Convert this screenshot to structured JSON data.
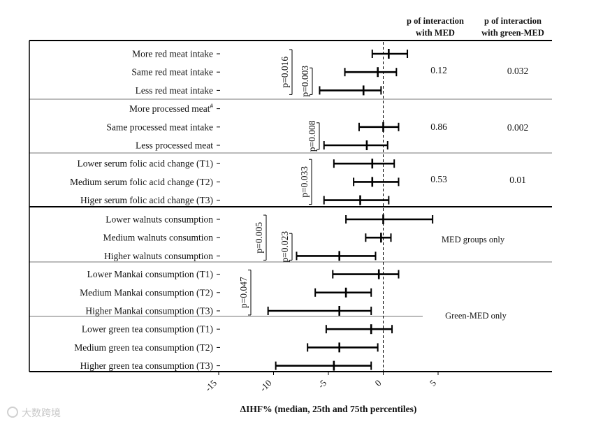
{
  "chart_data": {
    "type": "forest",
    "xlabel": "ΔIHF% (median, 25th and 75th percentiles)",
    "xlim": [
      -15,
      8
    ],
    "xticks": [
      "-15",
      "-10",
      "-5",
      "0",
      "5"
    ],
    "header_med": [
      "p of interaction",
      "with MED"
    ],
    "header_green": [
      "p of interaction",
      "with green-MED"
    ],
    "rows": [
      {
        "label": "More red meat intake",
        "sup": "",
        "median": 0.5,
        "q1": -1.0,
        "q3": 2.2
      },
      {
        "label": "Same red meat intake",
        "sup": "",
        "median": -0.5,
        "q1": -3.5,
        "q3": 1.2
      },
      {
        "label": "Less red meat intake",
        "sup": "",
        "median": -1.8,
        "q1": -5.8,
        "q3": -0.2
      },
      {
        "label": "More processed meat",
        "sup": "#",
        "median": null,
        "q1": null,
        "q3": null
      },
      {
        "label": "Same processed meat intake",
        "sup": "",
        "median": 0.0,
        "q1": -2.2,
        "q3": 1.4
      },
      {
        "label": "Less processed meat",
        "sup": "",
        "median": -1.5,
        "q1": -5.4,
        "q3": 0.4
      },
      {
        "label": "Lower serum folic acid change (T1)",
        "sup": "",
        "median": -1.0,
        "q1": -4.5,
        "q3": 1.0
      },
      {
        "label": "Medium serum folic acid change (T2)",
        "sup": "",
        "median": -1.0,
        "q1": -2.7,
        "q3": 1.4
      },
      {
        "label": "Higer serum folic acid change (T3)",
        "sup": "",
        "median": -2.1,
        "q1": -5.4,
        "q3": 0.5
      },
      {
        "label": "Lower walnuts consumption",
        "sup": "",
        "median": 0.0,
        "q1": -3.4,
        "q3": 4.5
      },
      {
        "label": "Medium walnuts consumtion",
        "sup": "",
        "median": -0.2,
        "q1": -1.6,
        "q3": 0.7
      },
      {
        "label": "Higher walnuts consumption",
        "sup": "",
        "median": -4.0,
        "q1": -7.9,
        "q3": -0.7
      },
      {
        "label": "Lower Mankai consumption (T1)",
        "sup": "",
        "median": -0.4,
        "q1": -4.6,
        "q3": 1.4
      },
      {
        "label": "Medium Mankai consumption (T2)",
        "sup": "",
        "median": -3.4,
        "q1": -6.2,
        "q3": -1.1
      },
      {
        "label": "Higher Mankai consumption (T3)",
        "sup": "",
        "median": -4.0,
        "q1": -10.5,
        "q3": -1.1
      },
      {
        "label": "Lower green tea consumption (T1)",
        "sup": "",
        "median": -1.1,
        "q1": -5.2,
        "q3": 0.8
      },
      {
        "label": "Medium green tea consumption (T2)",
        "sup": "",
        "median": -4.0,
        "q1": -6.9,
        "q3": -0.5
      },
      {
        "label": "Higher green tea consumption (T3)",
        "sup": "",
        "median": -4.5,
        "q1": -9.8,
        "q3": -1.1
      }
    ],
    "group_p": [
      {
        "med": "0.12",
        "green": "0.032"
      },
      {
        "med": "0.86",
        "green": "0.002"
      },
      {
        "med": "0.53",
        "green": "0.01"
      }
    ],
    "annotations": [
      {
        "text": "p=0.016",
        "from_row": 0,
        "to_row": 2
      },
      {
        "text": "p=0.003",
        "from_row": 1,
        "to_row": 2
      },
      {
        "text": "p=0.008",
        "from_row": 4,
        "to_row": 5
      },
      {
        "text": "p=0.033",
        "from_row": 6,
        "to_row": 8
      },
      {
        "text": "p=0.005",
        "from_row": 9,
        "to_row": 11
      },
      {
        "text": "p=0.023",
        "from_row": 10,
        "to_row": 11
      },
      {
        "text": "p=0.047",
        "from_row": 12,
        "to_row": 14
      }
    ],
    "notes": {
      "med_only": "MED groups only",
      "green_only": "Green-MED only"
    }
  },
  "watermark": "大数跨境"
}
